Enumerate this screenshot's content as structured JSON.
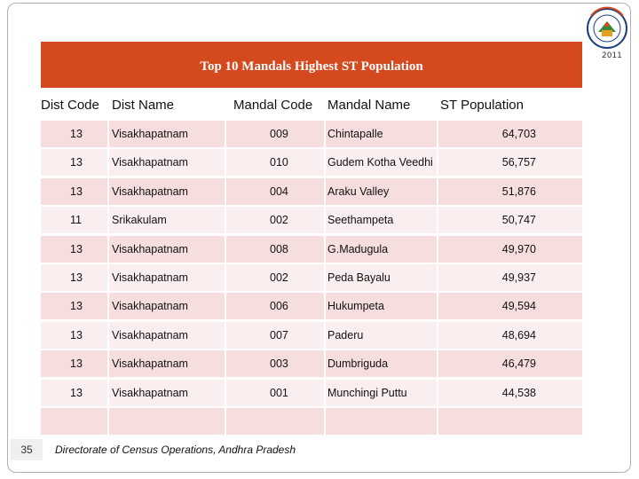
{
  "title": "Top 10 Mandals Highest ST Population",
  "logo": {
    "year": "2011",
    "colors": {
      "ring": "#1c3d80",
      "accent": "#d4491e"
    }
  },
  "table": {
    "headers": [
      "Dist Code",
      "Dist Name",
      "Mandal Code",
      "Mandal Name",
      "ST Population"
    ],
    "rows": [
      [
        "13",
        "Visakhapatnam",
        "009",
        "Chintapalle",
        "64,703"
      ],
      [
        "13",
        "Visakhapatnam",
        "010",
        "Gudem Kotha Veedhi",
        "56,757"
      ],
      [
        "13",
        "Visakhapatnam",
        "004",
        "Araku Valley",
        "51,876"
      ],
      [
        "11",
        "Srikakulam",
        "002",
        "Seethampeta",
        "50,747"
      ],
      [
        "13",
        "Visakhapatnam",
        "008",
        "G.Madugula",
        "49,970"
      ],
      [
        "13",
        "Visakhapatnam",
        "002",
        "Peda Bayalu",
        "49,937"
      ],
      [
        "13",
        "Visakhapatnam",
        "006",
        "Hukumpeta",
        "49,594"
      ],
      [
        "13",
        "Visakhapatnam",
        "007",
        "Paderu",
        "48,694"
      ],
      [
        "13",
        "Visakhapatnam",
        "003",
        "Dumbriguda",
        "46,479"
      ],
      [
        "13",
        "Visakhapatnam",
        "001",
        "Munchingi Puttu",
        "44,538"
      ]
    ]
  },
  "page_number": "35",
  "footer": "Directorate of Census Operations, Andhra Pradesh",
  "colors": {
    "title_bg": "#d4491e",
    "band": "#f7dede",
    "band_light": "#fbeeee"
  }
}
